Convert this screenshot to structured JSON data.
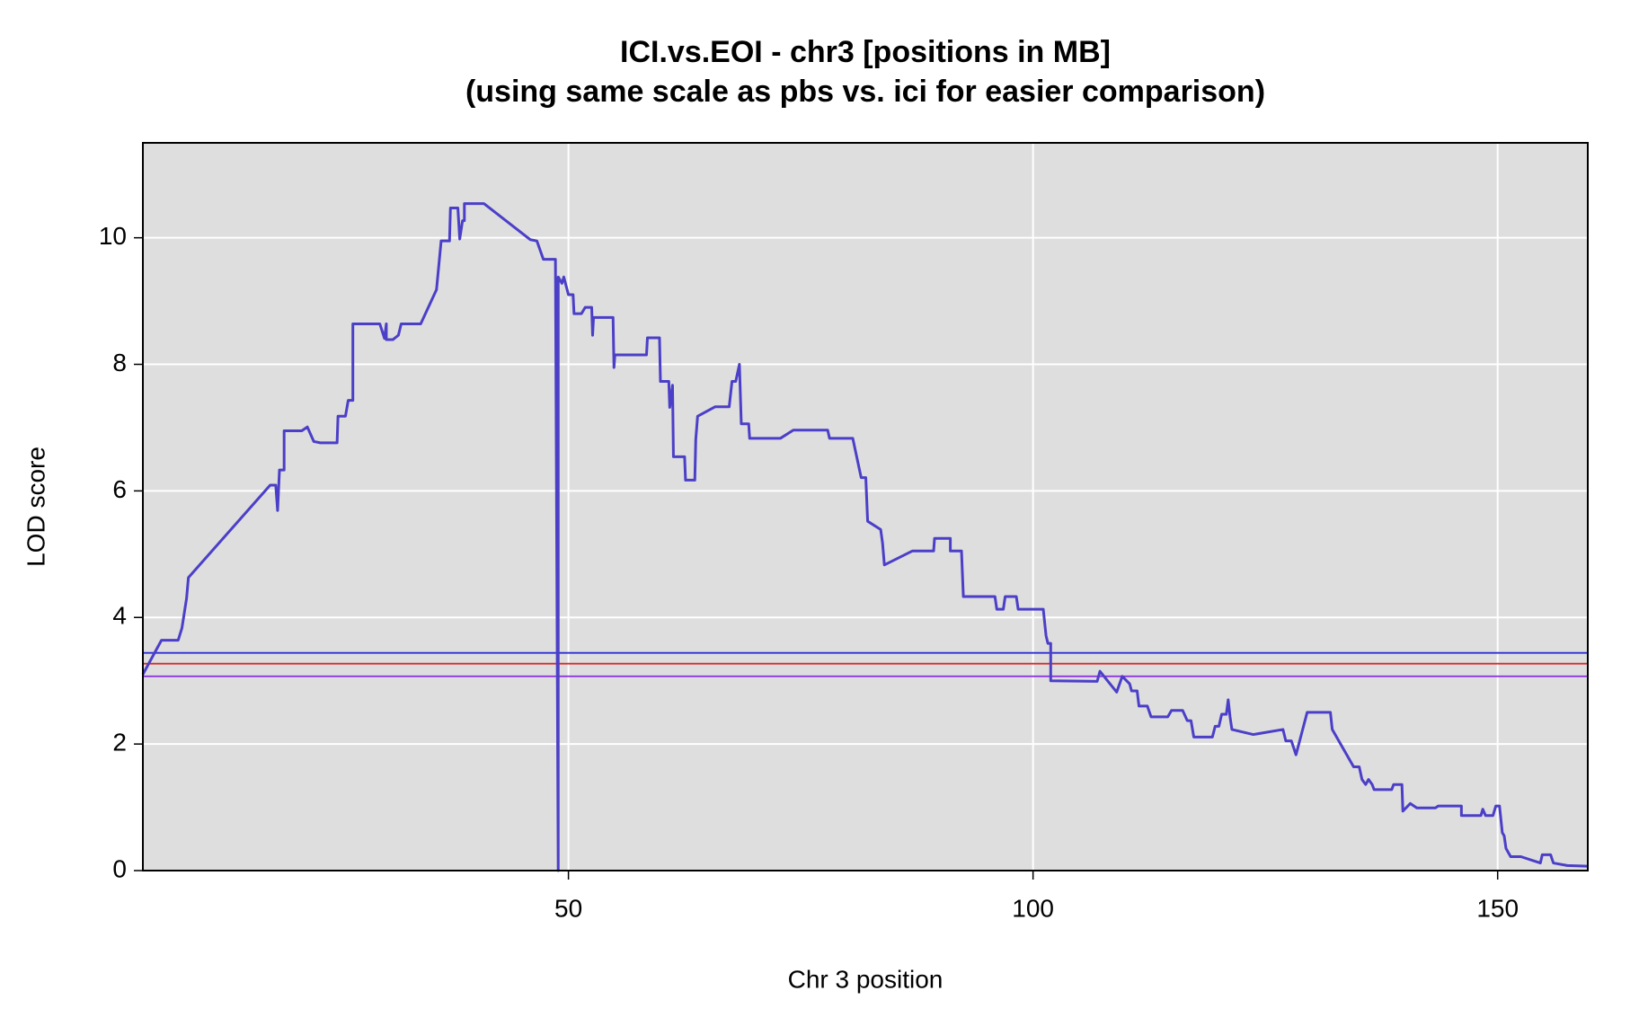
{
  "chart_data": {
    "type": "line",
    "title": "ICI.vs.EOI - chr3 [positions in MB]",
    "subtitle": "(using same scale as pbs vs. ici for easier comparison)",
    "x_label": "Chr 3 position",
    "y_label": "LOD score",
    "xlim": [
      4.2,
      159.7
    ],
    "ylim": [
      0,
      11.5
    ],
    "xticks": [
      50,
      100,
      150
    ],
    "yticks": [
      0,
      2,
      4,
      6,
      8,
      10
    ],
    "grid": true,
    "background": "#dedede",
    "hlines": [
      {
        "value": 3.44,
        "color": "#2e2ed6"
      },
      {
        "value": 3.27,
        "color": "#d62a2a"
      },
      {
        "value": 3.07,
        "color": "#8a2be2"
      }
    ],
    "x": [
      4.2,
      6.2,
      8.0,
      8.4,
      8.9,
      9.1,
      17.9,
      18.5,
      18.7,
      18.9,
      19.4,
      19.4,
      21.3,
      21.9,
      22.6,
      23.3,
      25.1,
      25.2,
      26.0,
      26.3,
      26.8,
      26.8,
      29.7,
      30.2,
      30.4,
      30.4,
      31.1,
      31.7,
      32.0,
      34.1,
      35.8,
      36.3,
      37.2,
      37.3,
      38.1,
      38.3,
      38.6,
      38.8,
      38.8,
      40.9,
      45.9,
      46.6,
      47.3,
      48.6,
      48.9,
      48.9,
      49.3,
      49.5,
      50.0,
      50.5,
      50.6,
      51.4,
      51.8,
      52.5,
      52.6,
      52.7,
      54.8,
      54.9,
      55.0,
      58.4,
      58.5,
      59.8,
      59.9,
      60.8,
      60.9,
      61.2,
      61.3,
      62.5,
      62.6,
      63.6,
      63.7,
      63.9,
      65.8,
      67.3,
      67.6,
      68.0,
      68.4,
      68.6,
      69.4,
      69.5,
      72.8,
      74.2,
      77.9,
      78.1,
      80.6,
      81.5,
      82.0,
      82.2,
      83.6,
      83.8,
      84.0,
      87.0,
      89.3,
      89.4,
      91.1,
      91.1,
      92.3,
      92.5,
      95.9,
      96.1,
      96.8,
      97.0,
      98.2,
      98.4,
      101.1,
      101.4,
      101.6,
      101.9,
      101.9,
      106.9,
      107.2,
      109.0,
      109.6,
      110.4,
      110.6,
      111.2,
      111.4,
      112.3,
      112.7,
      114.5,
      114.9,
      116.1,
      116.6,
      117.0,
      117.3,
      119.3,
      119.6,
      120.0,
      120.3,
      120.8,
      121.0,
      121.2,
      121.4,
      123.7,
      126.9,
      127.2,
      127.8,
      128.3,
      129.5,
      132.0,
      132.2,
      134.5,
      135.1,
      135.4,
      135.8,
      136.1,
      136.5,
      136.7,
      138.6,
      138.8,
      139.7,
      139.8,
      140.6,
      141.3,
      143.3,
      143.6,
      146.1,
      146.1,
      148.2,
      148.4,
      148.7,
      149.5,
      149.8,
      150.2,
      150.5,
      150.7,
      150.9,
      151.4,
      152.5,
      154.6,
      154.8,
      155.7,
      156.0,
      157.5,
      159.7
    ],
    "series": [
      {
        "color": "#4b3fc8",
        "values": [
          3.1,
          3.64,
          3.64,
          3.83,
          4.3,
          4.63,
          6.09,
          6.09,
          5.69,
          6.33,
          6.33,
          6.95,
          6.95,
          7.01,
          6.78,
          6.76,
          6.76,
          7.18,
          7.18,
          7.43,
          7.43,
          8.64,
          8.64,
          8.41,
          8.64,
          8.39,
          8.39,
          8.46,
          8.64,
          8.64,
          9.18,
          9.95,
          9.95,
          10.47,
          10.47,
          9.98,
          10.27,
          10.27,
          10.54,
          10.54,
          9.97,
          9.95,
          9.66,
          9.66,
          0,
          9.38,
          9.28,
          9.38,
          9.1,
          9.1,
          8.8,
          8.8,
          8.9,
          8.9,
          8.46,
          8.74,
          8.74,
          7.95,
          8.15,
          8.15,
          8.42,
          8.42,
          7.73,
          7.73,
          7.32,
          7.67,
          6.54,
          6.54,
          6.17,
          6.17,
          6.81,
          7.18,
          7.33,
          7.33,
          7.73,
          7.73,
          8.0,
          7.06,
          7.06,
          6.83,
          6.83,
          6.96,
          6.96,
          6.83,
          6.83,
          6.21,
          6.21,
          5.52,
          5.39,
          5.18,
          4.83,
          5.05,
          5.05,
          5.25,
          5.25,
          5.05,
          5.05,
          4.33,
          4.33,
          4.13,
          4.13,
          4.33,
          4.33,
          4.13,
          4.13,
          3.71,
          3.59,
          3.59,
          3.0,
          2.99,
          3.15,
          2.82,
          3.07,
          2.95,
          2.84,
          2.84,
          2.6,
          2.6,
          2.43,
          2.43,
          2.53,
          2.53,
          2.37,
          2.37,
          2.11,
          2.11,
          2.28,
          2.28,
          2.47,
          2.47,
          2.7,
          2.43,
          2.23,
          2.15,
          2.23,
          2.05,
          2.05,
          1.83,
          2.5,
          2.5,
          2.23,
          1.64,
          1.64,
          1.44,
          1.36,
          1.44,
          1.36,
          1.28,
          1.28,
          1.36,
          1.36,
          0.94,
          1.06,
          0.99,
          0.99,
          1.02,
          1.02,
          0.87,
          0.87,
          0.97,
          0.87,
          0.87,
          1.02,
          1.02,
          0.6,
          0.55,
          0.35,
          0.22,
          0.22,
          0.12,
          0.25,
          0.25,
          0.12,
          0.08,
          0.07
        ]
      }
    ]
  }
}
